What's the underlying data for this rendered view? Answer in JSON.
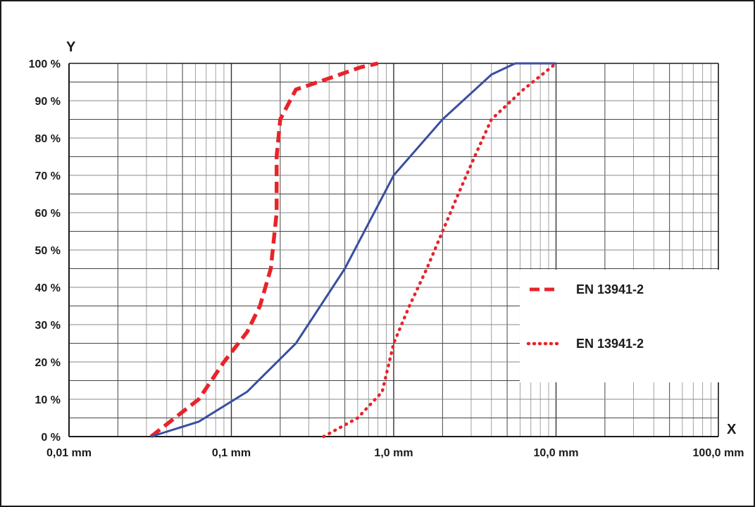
{
  "chart_data": {
    "type": "line",
    "title": "",
    "xlabel": "X",
    "ylabel": "Y",
    "x_scale": "log",
    "xlim": [
      0.01,
      100
    ],
    "ylim": [
      0,
      100
    ],
    "grid": true,
    "x_ticks": [
      {
        "value": 0.01,
        "label": "0,01 mm"
      },
      {
        "value": 0.1,
        "label": "0,1 mm"
      },
      {
        "value": 1,
        "label": "1,0 mm"
      },
      {
        "value": 10,
        "label": "10,0 mm"
      },
      {
        "value": 100,
        "label": "100,0 mm"
      }
    ],
    "y_ticks": [
      {
        "value": 0,
        "label": "0 %"
      },
      {
        "value": 10,
        "label": "10 %"
      },
      {
        "value": 20,
        "label": "20 %"
      },
      {
        "value": 30,
        "label": "30 %"
      },
      {
        "value": 40,
        "label": "40 %"
      },
      {
        "value": 50,
        "label": "50 %"
      },
      {
        "value": 60,
        "label": "60 %"
      },
      {
        "value": 70,
        "label": "70 %"
      },
      {
        "value": 80,
        "label": "80 %"
      },
      {
        "value": 90,
        "label": "90 %"
      },
      {
        "value": 100,
        "label": "100 %"
      }
    ],
    "legend_position": "right",
    "series": [
      {
        "name": "EN 13941-2",
        "style": "dashed",
        "color": "#e8232a",
        "points": [
          [
            0.032,
            0
          ],
          [
            0.063,
            10
          ],
          [
            0.09,
            20
          ],
          [
            0.125,
            28
          ],
          [
            0.15,
            35
          ],
          [
            0.175,
            45
          ],
          [
            0.19,
            60
          ],
          [
            0.19,
            75
          ],
          [
            0.2,
            85
          ],
          [
            0.25,
            93
          ],
          [
            0.4,
            96
          ],
          [
            0.63,
            99
          ],
          [
            0.8,
            100
          ]
        ]
      },
      {
        "name": "EN 13941-2",
        "style": "dotted",
        "color": "#e8232a",
        "points": [
          [
            0.37,
            0
          ],
          [
            0.6,
            5
          ],
          [
            0.85,
            12
          ],
          [
            1.0,
            25
          ],
          [
            1.25,
            35
          ],
          [
            1.6,
            45
          ],
          [
            2.0,
            55
          ],
          [
            2.5,
            65
          ],
          [
            3.15,
            75
          ],
          [
            4.0,
            85
          ],
          [
            6.3,
            93
          ],
          [
            10.0,
            100
          ]
        ]
      },
      {
        "name": "",
        "style": "solid",
        "color": "#3a4fa0",
        "points": [
          [
            0.032,
            0
          ],
          [
            0.063,
            4
          ],
          [
            0.125,
            12
          ],
          [
            0.25,
            25
          ],
          [
            0.5,
            45
          ],
          [
            1.0,
            70
          ],
          [
            2.0,
            85
          ],
          [
            4.0,
            97
          ],
          [
            5.6,
            100
          ],
          [
            10.0,
            100
          ]
        ]
      }
    ]
  }
}
